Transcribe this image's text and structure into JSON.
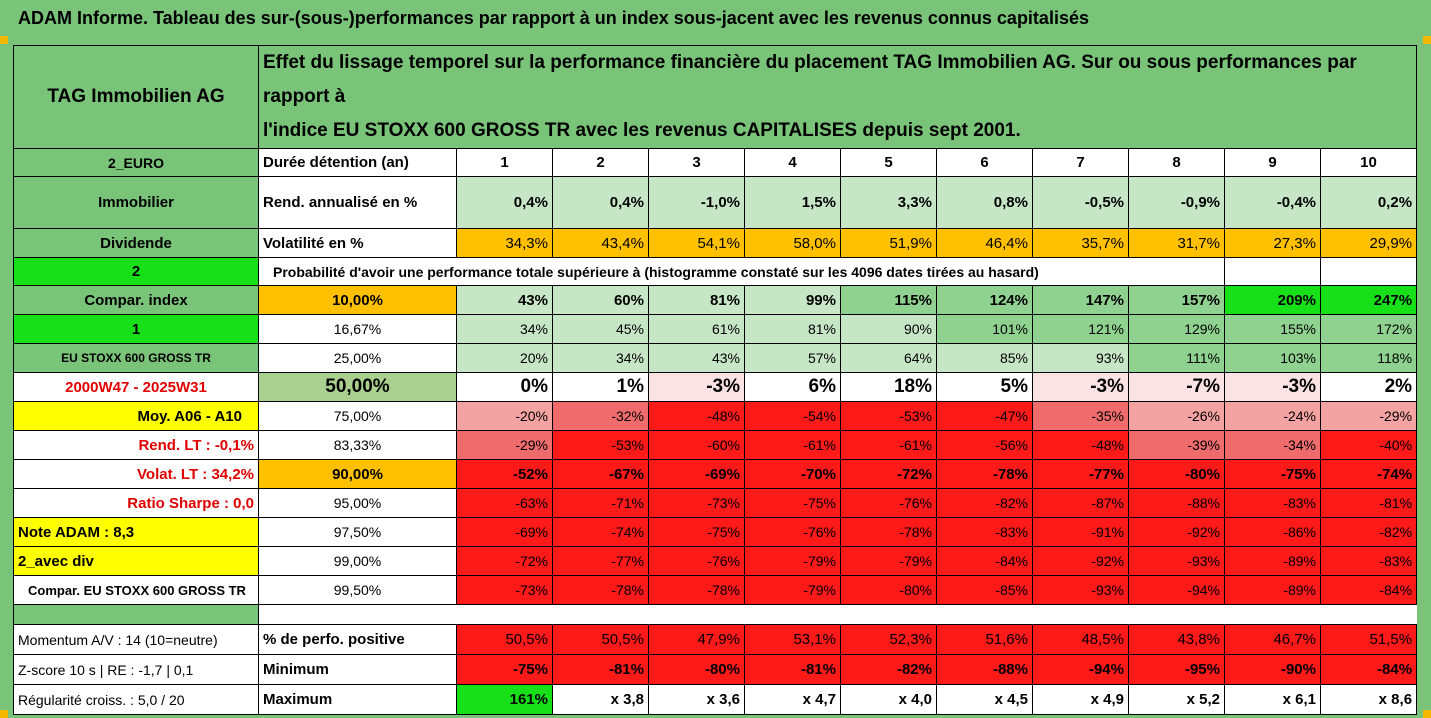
{
  "title": "ADAM Informe. Tableau des sur-(sous-)performances par rapport à un index sous-jacent avec les revenus connus capitalisés",
  "header": {
    "asset": "TAG Immobilien AG",
    "description_line1": "Effet du lissage temporel sur la performance financière du placement TAG Immobilien AG. Sur ou sous performances par rapport à",
    "description_line2": "l'indice EU STOXX 600 GROSS TR avec les revenus CAPITALISES depuis sept 2001."
  },
  "left_labels": {
    "currency": "2_EURO",
    "sector": "Immobilier",
    "dividend": "Dividende",
    "flag_a": "2",
    "compar_index": "Compar. index",
    "flag_b": "1",
    "index_name": "EU STOXX 600 GROSS TR",
    "period": "2000W47 - 2025W31",
    "moy": "Moy. A06 - A10",
    "rend_lt": "Rend. LT :   -0,1%",
    "volat_lt": "Volat. LT :   34,2%",
    "sharpe": "Ratio Sharpe :   0,0",
    "note": "Note ADAM : 8,3",
    "avec_div": "2_avec div",
    "compar_full": "Compar. EU STOXX 600 GROSS TR",
    "momentum": "Momentum A/V : 14 (10=neutre)",
    "zscore": "Z-score 10 s  |  RE : -1,7  |  0,1",
    "regularite": "Régularité croiss. : 5,0 / 20"
  },
  "row_labels": {
    "duree": "Durée détention (an)",
    "rend": "Rend. annualisé en %",
    "volat": "Volatilité en %",
    "proba": "Probabilité d'avoir une performance totale supérieure à (histogramme constaté sur les 4096 dates tirées au hasard)",
    "pct_pos": "% de perfo. positive",
    "minimum": "Minimum",
    "maximum": "Maximum"
  },
  "years": [
    "1",
    "2",
    "3",
    "4",
    "5",
    "6",
    "7",
    "8",
    "9",
    "10"
  ],
  "rend": [
    "0,4%",
    "0,4%",
    "-1,0%",
    "1,5%",
    "3,3%",
    "0,8%",
    "-0,5%",
    "-0,9%",
    "-0,4%",
    "0,2%"
  ],
  "volat": [
    "34,3%",
    "43,4%",
    "54,1%",
    "58,0%",
    "51,9%",
    "46,4%",
    "35,7%",
    "31,7%",
    "27,3%",
    "29,9%"
  ],
  "percentiles": [
    {
      "p": "10,00%",
      "v": [
        "43%",
        "60%",
        "81%",
        "99%",
        "115%",
        "124%",
        "147%",
        "157%",
        "209%",
        "247%"
      ]
    },
    {
      "p": "16,67%",
      "v": [
        "34%",
        "45%",
        "61%",
        "81%",
        "90%",
        "101%",
        "121%",
        "129%",
        "155%",
        "172%"
      ]
    },
    {
      "p": "25,00%",
      "v": [
        "20%",
        "34%",
        "43%",
        "57%",
        "64%",
        "85%",
        "93%",
        "111%",
        "103%",
        "118%"
      ]
    },
    {
      "p": "50,00%",
      "v": [
        "0%",
        "1%",
        "-3%",
        "6%",
        "18%",
        "5%",
        "-3%",
        "-7%",
        "-3%",
        "2%"
      ]
    },
    {
      "p": "75,00%",
      "v": [
        "-20%",
        "-32%",
        "-48%",
        "-54%",
        "-53%",
        "-47%",
        "-35%",
        "-26%",
        "-24%",
        "-29%"
      ]
    },
    {
      "p": "83,33%",
      "v": [
        "-29%",
        "-53%",
        "-60%",
        "-61%",
        "-61%",
        "-56%",
        "-48%",
        "-39%",
        "-34%",
        "-40%"
      ]
    },
    {
      "p": "90,00%",
      "v": [
        "-52%",
        "-67%",
        "-69%",
        "-70%",
        "-72%",
        "-78%",
        "-77%",
        "-80%",
        "-75%",
        "-74%"
      ]
    },
    {
      "p": "95,00%",
      "v": [
        "-63%",
        "-71%",
        "-73%",
        "-75%",
        "-76%",
        "-82%",
        "-87%",
        "-88%",
        "-83%",
        "-81%"
      ]
    },
    {
      "p": "97,50%",
      "v": [
        "-69%",
        "-74%",
        "-75%",
        "-76%",
        "-78%",
        "-83%",
        "-91%",
        "-92%",
        "-86%",
        "-82%"
      ]
    },
    {
      "p": "99,00%",
      "v": [
        "-72%",
        "-77%",
        "-76%",
        "-79%",
        "-79%",
        "-84%",
        "-92%",
        "-93%",
        "-89%",
        "-83%"
      ]
    },
    {
      "p": "99,50%",
      "v": [
        "-73%",
        "-78%",
        "-78%",
        "-79%",
        "-80%",
        "-85%",
        "-93%",
        "-94%",
        "-89%",
        "-84%"
      ]
    }
  ],
  "pct_pos": [
    "50,5%",
    "50,5%",
    "47,9%",
    "53,1%",
    "52,3%",
    "51,6%",
    "48,5%",
    "43,8%",
    "46,7%",
    "51,5%"
  ],
  "minimum": [
    "-75%",
    "-81%",
    "-80%",
    "-81%",
    "-82%",
    "-88%",
    "-94%",
    "-95%",
    "-90%",
    "-84%"
  ],
  "maximum": [
    "161%",
    "x 3,8",
    "x 3,6",
    "x 4,7",
    "x 4,0",
    "x 4,5",
    "x 4,9",
    "x 5,2",
    "x 6,1",
    "x 8,6"
  ]
}
